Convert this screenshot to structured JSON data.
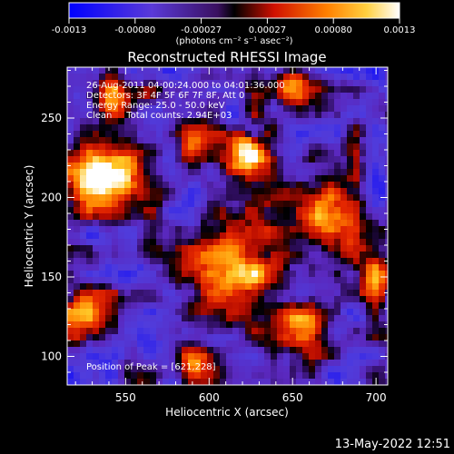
{
  "chart_data": {
    "type": "heatmap",
    "title": "Reconstructed RHESSI Image",
    "xlabel": "Heliocentric X (arcsec)",
    "ylabel": "Heliocentric Y (arcsec)",
    "xlim": [
      515,
      707
    ],
    "ylim": [
      82,
      282
    ],
    "xticks": [
      550,
      600,
      650,
      700
    ],
    "yticks": [
      100,
      150,
      200,
      250
    ],
    "colorbar": {
      "ticks": [
        "-0.0013",
        "-0.00080",
        "-0.00027",
        "0.00027",
        "0.00080",
        "0.0013"
      ],
      "unit_label": "(photons cm⁻² s⁻¹ asec⁻²)",
      "range": [
        -0.0013,
        0.0013
      ]
    },
    "annotations": [
      "26-Aug-2011 04:00:24.000 to 04:01:36.000",
      "Detectors: 3F 4F 5F 6F 7F 8F, Att 0",
      "Energy Range: 25.0 - 50.0 keV",
      "Clean     Total counts: 2.94E+03"
    ],
    "peak_label": "Position of Peak = [621,228]",
    "sources": [
      {
        "x": 621,
        "y": 228,
        "intensity": 0.0013,
        "width": 10
      },
      {
        "x": 611,
        "y": 152,
        "intensity": 0.00105,
        "width": 20
      },
      {
        "x": 672,
        "y": 185,
        "intensity": 0.00115,
        "width": 13
      },
      {
        "x": 528,
        "y": 208,
        "intensity": 0.00095,
        "width": 14
      },
      {
        "x": 543,
        "y": 215,
        "intensity": 0.00085,
        "width": 10
      },
      {
        "x": 527,
        "y": 125,
        "intensity": 0.00085,
        "width": 12
      },
      {
        "x": 547,
        "y": 262,
        "intensity": 0.00075,
        "width": 10
      },
      {
        "x": 655,
        "y": 115,
        "intensity": 0.0008,
        "width": 12
      },
      {
        "x": 700,
        "y": 150,
        "intensity": 0.00075,
        "width": 9
      },
      {
        "x": 592,
        "y": 96,
        "intensity": 0.0007,
        "width": 10
      },
      {
        "x": 650,
        "y": 270,
        "intensity": 0.0007,
        "width": 10
      },
      {
        "x": 590,
        "y": 235,
        "intensity": 0.0006,
        "width": 9
      }
    ],
    "background_level": -0.00045
  },
  "footer": {
    "date": "13-May-2022 12:51"
  }
}
